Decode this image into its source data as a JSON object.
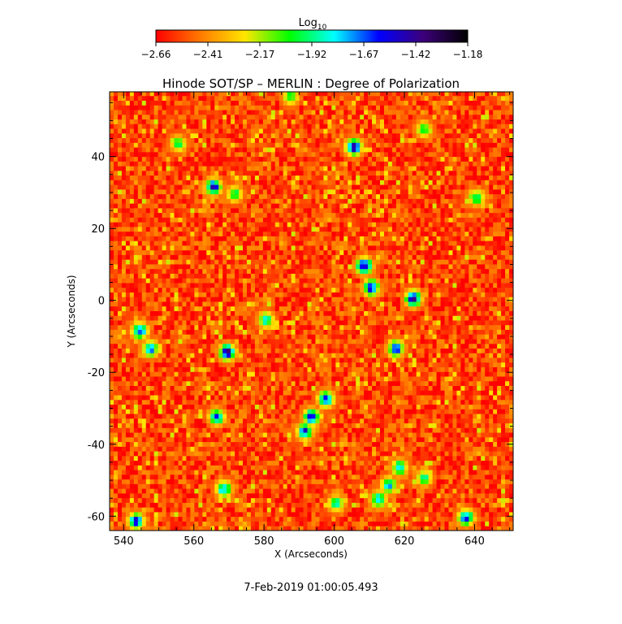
{
  "chart_data": {
    "type": "heatmap",
    "title": "Hinode SOT/SP – MERLIN : Degree of Polarization",
    "xlabel": "X (Arcseconds)",
    "ylabel": "Y (Arcseconds)",
    "xlim": [
      536,
      651
    ],
    "ylim": [
      -64,
      58
    ],
    "x_ticks": [
      540,
      560,
      580,
      600,
      620,
      640
    ],
    "y_ticks": [
      -60,
      -40,
      -20,
      0,
      20,
      40
    ],
    "colorbar": {
      "label": "Log",
      "label_sub": "10",
      "ticks": [
        "−2.66",
        "−2.41",
        "−2.17",
        "−1.92",
        "−1.67",
        "−1.42",
        "−1.18"
      ],
      "range": [
        -2.66,
        -1.18
      ],
      "colors": [
        "#ff0000",
        "#ff7a00",
        "#ffe600",
        "#00ff00",
        "#00ffff",
        "#0000ff",
        "#3c007a",
        "#000000"
      ]
    },
    "footer": "7-Feb-2019 01:00:05.493",
    "background_level": -2.55,
    "features": [
      {
        "x": 605,
        "y": 42,
        "peak": -1.3
      },
      {
        "x": 565,
        "y": 31,
        "peak": -1.4
      },
      {
        "x": 571,
        "y": 29,
        "peak": -1.9
      },
      {
        "x": 608,
        "y": 9,
        "peak": -1.25
      },
      {
        "x": 610,
        "y": 3,
        "peak": -1.45
      },
      {
        "x": 622,
        "y": 0,
        "peak": -1.3
      },
      {
        "x": 580,
        "y": -6,
        "peak": -1.8
      },
      {
        "x": 544,
        "y": -9,
        "peak": -1.5
      },
      {
        "x": 547,
        "y": -14,
        "peak": -1.6
      },
      {
        "x": 569,
        "y": -15,
        "peak": -1.3
      },
      {
        "x": 617,
        "y": -14,
        "peak": -1.5
      },
      {
        "x": 597,
        "y": -28,
        "peak": -1.5
      },
      {
        "x": 593,
        "y": -33,
        "peak": -1.4
      },
      {
        "x": 591,
        "y": -37,
        "peak": -1.5
      },
      {
        "x": 566,
        "y": -33,
        "peak": -1.6
      },
      {
        "x": 568,
        "y": -53,
        "peak": -1.6
      },
      {
        "x": 615,
        "y": -52,
        "peak": -1.7
      },
      {
        "x": 618,
        "y": -47,
        "peak": -1.7
      },
      {
        "x": 612,
        "y": -56,
        "peak": -1.7
      },
      {
        "x": 600,
        "y": -57,
        "peak": -1.8
      },
      {
        "x": 543,
        "y": -62,
        "peak": -1.45
      },
      {
        "x": 637,
        "y": -61,
        "peak": -1.5
      },
      {
        "x": 625,
        "y": -50,
        "peak": -1.85
      },
      {
        "x": 555,
        "y": 43,
        "peak": -1.9
      },
      {
        "x": 625,
        "y": 47,
        "peak": -1.9
      },
      {
        "x": 640,
        "y": 28,
        "peak": -1.8
      },
      {
        "x": 587,
        "y": 56,
        "peak": -1.9
      }
    ]
  }
}
